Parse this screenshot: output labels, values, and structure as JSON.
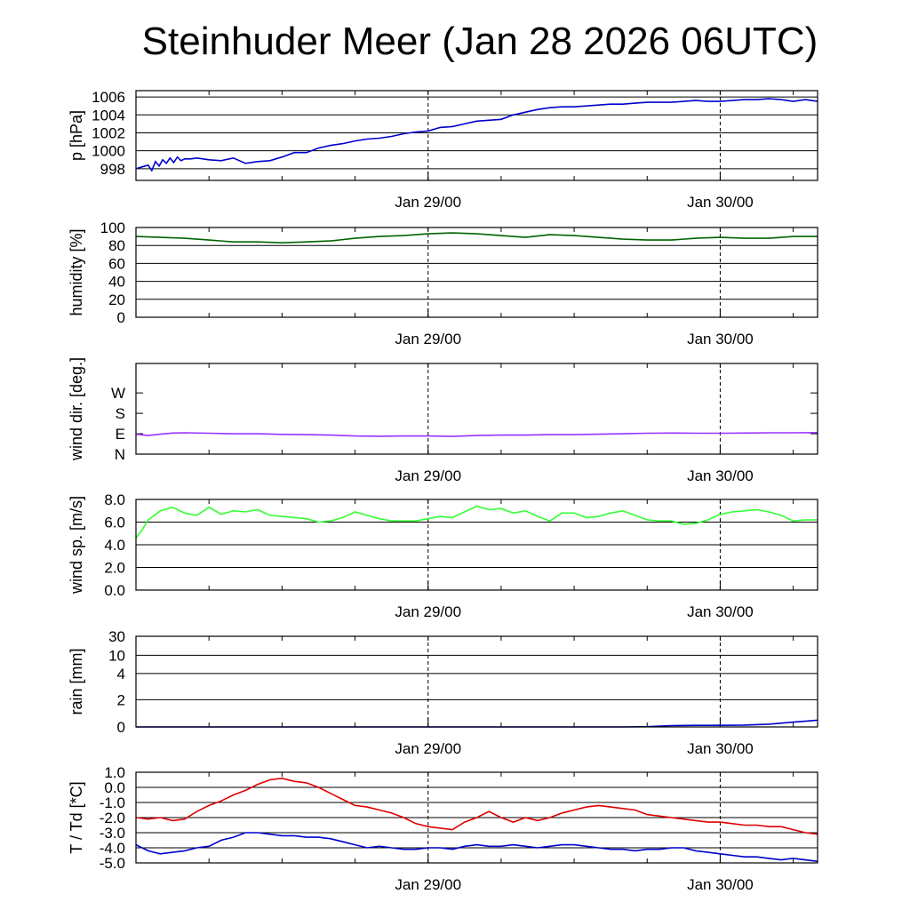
{
  "title": "Steinhuder Meer (Jan 28 2026 06UTC)",
  "chart_data": [
    {
      "id": "pressure",
      "type": "line",
      "ylabel": "p [hPa]",
      "ylim": [
        996.7,
        1006.7
      ],
      "scale": "linear",
      "yticks": [
        {
          "v": 998,
          "label": "998"
        },
        {
          "v": 1000,
          "label": "1000"
        },
        {
          "v": 1002,
          "label": "1002"
        },
        {
          "v": 1004,
          "label": "1004"
        },
        {
          "v": 1006,
          "label": "1006"
        }
      ],
      "xticks": [
        {
          "x": 24,
          "label": "Jan 29/00"
        },
        {
          "x": 48,
          "label": "Jan 30/00"
        }
      ],
      "xlim": [
        0,
        56
      ],
      "grid": true,
      "series": [
        {
          "name": "pressure",
          "color": "#0000cc",
          "x": [
            0,
            0.5,
            1,
            1.3,
            1.6,
            1.9,
            2.2,
            2.5,
            2.8,
            3.1,
            3.4,
            3.7,
            4,
            4.5,
            5,
            6,
            7,
            8,
            9,
            10,
            11,
            12,
            13,
            14,
            15,
            16,
            17,
            18,
            19,
            20,
            21,
            22,
            23,
            24,
            25,
            26,
            27,
            28,
            29,
            30,
            31,
            32,
            33,
            34,
            35,
            36,
            37,
            38,
            39,
            40,
            41,
            42,
            43,
            44,
            45,
            46,
            47,
            48,
            49,
            50,
            51,
            52,
            53,
            54,
            55,
            56
          ],
          "values": [
            998,
            998.2,
            998.4,
            997.8,
            998.8,
            998.3,
            999,
            998.6,
            999.2,
            998.7,
            999.3,
            998.9,
            999.1,
            999.1,
            999.2,
            999,
            998.9,
            999.2,
            998.6,
            998.8,
            998.9,
            999.3,
            999.8,
            999.8,
            1000.3,
            1000.6,
            1000.8,
            1001.1,
            1001.3,
            1001.4,
            1001.6,
            1001.9,
            1002.1,
            1002.2,
            1002.6,
            1002.7,
            1003,
            1003.3,
            1003.4,
            1003.5,
            1004,
            1004.3,
            1004.6,
            1004.8,
            1004.9,
            1004.9,
            1005,
            1005.1,
            1005.2,
            1005.2,
            1005.3,
            1005.4,
            1005.4,
            1005.4,
            1005.5,
            1005.6,
            1005.5,
            1005.5,
            1005.6,
            1005.7,
            1005.7,
            1005.8,
            1005.7,
            1005.5,
            1005.7,
            1005.5
          ]
        }
      ]
    },
    {
      "id": "humidity",
      "type": "line",
      "ylabel": "humidity [%]",
      "ylim": [
        0,
        100
      ],
      "scale": "linear",
      "yticks": [
        {
          "v": 0,
          "label": "0"
        },
        {
          "v": 20,
          "label": "20"
        },
        {
          "v": 40,
          "label": "40"
        },
        {
          "v": 60,
          "label": "60"
        },
        {
          "v": 80,
          "label": "80"
        },
        {
          "v": 100,
          "label": "100"
        }
      ],
      "xticks": [
        {
          "x": 24,
          "label": "Jan 29/00"
        },
        {
          "x": 48,
          "label": "Jan 30/00"
        }
      ],
      "xlim": [
        0,
        56
      ],
      "grid": true,
      "series": [
        {
          "name": "humidity",
          "color": "#006400",
          "x": [
            0,
            2,
            4,
            6,
            8,
            10,
            12,
            14,
            16,
            18,
            20,
            22,
            24,
            26,
            28,
            30,
            32,
            34,
            36,
            38,
            40,
            42,
            44,
            46,
            48,
            50,
            52,
            54,
            56
          ],
          "values": [
            90,
            89,
            88,
            86,
            84,
            84,
            83,
            84,
            85,
            88,
            90,
            91,
            93,
            94,
            93,
            91,
            89,
            92,
            91,
            89,
            87,
            86,
            86,
            88,
            89,
            88,
            88,
            90,
            90
          ]
        }
      ]
    },
    {
      "id": "wind_dir",
      "type": "line",
      "ylabel": "wind dir. [deg.]",
      "ylim": [
        0,
        400
      ],
      "scale": "linear",
      "yticks": [
        {
          "v": 0,
          "label": "N"
        },
        {
          "v": 90,
          "label": "E"
        },
        {
          "v": 180,
          "label": "S"
        },
        {
          "v": 270,
          "label": "W"
        }
      ],
      "xticks": [
        {
          "x": 24,
          "label": "Jan 29/00"
        },
        {
          "x": 48,
          "label": "Jan 30/00"
        }
      ],
      "xlim": [
        0,
        56
      ],
      "grid": false,
      "series": [
        {
          "name": "wind direction",
          "color": "#9933ff",
          "x": [
            0,
            1,
            2,
            3,
            4,
            6,
            8,
            10,
            12,
            14,
            16,
            18,
            20,
            22,
            24,
            26,
            28,
            30,
            32,
            34,
            36,
            38,
            40,
            42,
            44,
            46,
            48,
            50,
            52,
            54,
            56
          ],
          "values": [
            88,
            82,
            88,
            93,
            94,
            92,
            90,
            90,
            87,
            86,
            84,
            80,
            79,
            80,
            80,
            78,
            82,
            84,
            84,
            86,
            86,
            88,
            90,
            92,
            93,
            92,
            92,
            93,
            94,
            94,
            95
          ]
        }
      ]
    },
    {
      "id": "wind_speed",
      "type": "line",
      "ylabel": "wind sp. [m/s]",
      "ylim": [
        0,
        8
      ],
      "scale": "linear",
      "yticks": [
        {
          "v": 0,
          "label": "0.0"
        },
        {
          "v": 2,
          "label": "2.0"
        },
        {
          "v": 4,
          "label": "4.0"
        },
        {
          "v": 6,
          "label": "6.0"
        },
        {
          "v": 8,
          "label": "8.0"
        }
      ],
      "xticks": [
        {
          "x": 24,
          "label": "Jan 29/00"
        },
        {
          "x": 48,
          "label": "Jan 30/00"
        }
      ],
      "xlim": [
        0,
        56
      ],
      "grid": true,
      "series": [
        {
          "name": "wind speed",
          "color": "#33ff33",
          "x": [
            0,
            0.5,
            1,
            2,
            3,
            4,
            5,
            6,
            7,
            8,
            9,
            10,
            11,
            12,
            13,
            14,
            15,
            16,
            17,
            18,
            19,
            20,
            21,
            22,
            23,
            24,
            25,
            26,
            27,
            28,
            29,
            30,
            31,
            32,
            33,
            34,
            35,
            36,
            37,
            38,
            39,
            40,
            41,
            42,
            43,
            44,
            45,
            46,
            47,
            48,
            49,
            50,
            51,
            52,
            53,
            54,
            55,
            56
          ],
          "values": [
            4.6,
            5.3,
            6.2,
            7.0,
            7.3,
            6.8,
            6.6,
            7.3,
            6.7,
            7.0,
            6.9,
            7.1,
            6.6,
            6.5,
            6.4,
            6.3,
            6.0,
            6.1,
            6.4,
            6.9,
            6.6,
            6.3,
            6.1,
            6.1,
            6.1,
            6.3,
            6.5,
            6.4,
            6.9,
            7.4,
            7.1,
            7.2,
            6.8,
            7.0,
            6.5,
            6.1,
            6.8,
            6.8,
            6.4,
            6.5,
            6.8,
            7.0,
            6.6,
            6.2,
            6.1,
            6.1,
            5.8,
            5.9,
            6.2,
            6.7,
            6.9,
            7.0,
            7.1,
            6.9,
            6.6,
            6.1,
            6.2,
            6.2
          ]
        }
      ]
    },
    {
      "id": "rain",
      "type": "line",
      "ylabel": "rain [mm]",
      "ylim": [
        0,
        30
      ],
      "scale": "rain",
      "yticks": [
        {
          "v": 0,
          "label": "0"
        },
        {
          "v": 2,
          "label": "2"
        },
        {
          "v": 4,
          "label": "4"
        },
        {
          "v": 10,
          "label": "10"
        },
        {
          "v": 30,
          "label": "30"
        }
      ],
      "xticks": [
        {
          "x": 24,
          "label": "Jan 29/00"
        },
        {
          "x": 48,
          "label": "Jan 30/00"
        }
      ],
      "xlim": [
        0,
        56
      ],
      "grid": true,
      "series": [
        {
          "name": "rain",
          "color": "#0000cc",
          "x": [
            0,
            10,
            20,
            30,
            40,
            42,
            44,
            46,
            48,
            50,
            52,
            54,
            56
          ],
          "values": [
            0,
            0,
            0,
            0,
            0,
            0.02,
            0.1,
            0.12,
            0.12,
            0.14,
            0.2,
            0.35,
            0.5
          ]
        }
      ]
    },
    {
      "id": "temperature",
      "type": "line",
      "ylabel": "T / Td [*C]",
      "ylim": [
        -5,
        1
      ],
      "scale": "linear",
      "yticks": [
        {
          "v": 1,
          "label": "1.0"
        },
        {
          "v": 0,
          "label": "0.0"
        },
        {
          "v": -1,
          "label": "-1.0"
        },
        {
          "v": -2,
          "label": "-2.0"
        },
        {
          "v": -3,
          "label": "-3.0"
        },
        {
          "v": -4,
          "label": "-4.0"
        },
        {
          "v": -5,
          "label": "-5.0"
        }
      ],
      "xticks": [
        {
          "x": 24,
          "label": "Jan 29/00"
        },
        {
          "x": 48,
          "label": "Jan 30/00"
        }
      ],
      "xlim": [
        0,
        56
      ],
      "grid": true,
      "series": [
        {
          "name": "T",
          "color": "#dd0000",
          "x": [
            0,
            1,
            2,
            3,
            4,
            5,
            6,
            7,
            8,
            9,
            10,
            11,
            12,
            13,
            14,
            15,
            16,
            17,
            18,
            19,
            20,
            21,
            22,
            23,
            24,
            25,
            26,
            27,
            28,
            29,
            30,
            31,
            32,
            33,
            34,
            35,
            36,
            37,
            38,
            39,
            40,
            41,
            42,
            43,
            44,
            45,
            46,
            47,
            48,
            49,
            50,
            51,
            52,
            53,
            54,
            55,
            56
          ],
          "values": [
            -2.0,
            -2.1,
            -2.0,
            -2.2,
            -2.1,
            -1.6,
            -1.2,
            -0.9,
            -0.5,
            -0.2,
            0.2,
            0.5,
            0.6,
            0.4,
            0.3,
            0.0,
            -0.4,
            -0.8,
            -1.2,
            -1.3,
            -1.5,
            -1.7,
            -2.0,
            -2.4,
            -2.6,
            -2.7,
            -2.8,
            -2.3,
            -2.0,
            -1.6,
            -2.0,
            -2.3,
            -2.0,
            -2.2,
            -2.0,
            -1.7,
            -1.5,
            -1.3,
            -1.2,
            -1.3,
            -1.4,
            -1.5,
            -1.8,
            -1.9,
            -2.0,
            -2.1,
            -2.2,
            -2.3,
            -2.3,
            -2.4,
            -2.5,
            -2.5,
            -2.6,
            -2.6,
            -2.8,
            -3.0,
            -3.1
          ]
        },
        {
          "name": "Td",
          "color": "#0000cc",
          "x": [
            0,
            1,
            2,
            3,
            4,
            5,
            6,
            7,
            8,
            9,
            10,
            11,
            12,
            13,
            14,
            15,
            16,
            17,
            18,
            19,
            20,
            21,
            22,
            23,
            24,
            25,
            26,
            27,
            28,
            29,
            30,
            31,
            32,
            33,
            34,
            35,
            36,
            37,
            38,
            39,
            40,
            41,
            42,
            43,
            44,
            45,
            46,
            47,
            48,
            49,
            50,
            51,
            52,
            53,
            54,
            55,
            56
          ],
          "values": [
            -3.8,
            -4.2,
            -4.4,
            -4.3,
            -4.2,
            -4.0,
            -3.9,
            -3.5,
            -3.3,
            -3.0,
            -3.0,
            -3.1,
            -3.2,
            -3.2,
            -3.3,
            -3.3,
            -3.4,
            -3.6,
            -3.8,
            -4.0,
            -3.9,
            -4.0,
            -4.1,
            -4.1,
            -4.0,
            -4.0,
            -4.1,
            -3.9,
            -3.8,
            -3.9,
            -3.9,
            -3.8,
            -3.9,
            -4.0,
            -3.9,
            -3.8,
            -3.8,
            -3.9,
            -4.0,
            -4.1,
            -4.1,
            -4.2,
            -4.1,
            -4.1,
            -4.0,
            -4.0,
            -4.2,
            -4.3,
            -4.4,
            -4.5,
            -4.6,
            -4.6,
            -4.7,
            -4.8,
            -4.7,
            -4.8,
            -4.9
          ]
        }
      ]
    }
  ]
}
